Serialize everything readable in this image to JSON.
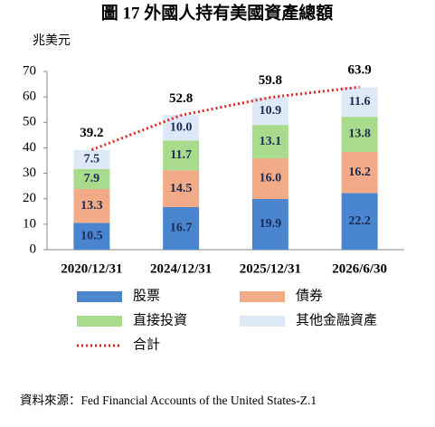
{
  "chart_data": {
    "type": "bar",
    "stacked": true,
    "title": "圖 17  外國人持有美國資產總額",
    "y_label": "兆美元",
    "source": "資料來源：Fed Financial Accounts of the United States-Z.1",
    "categories": [
      "2020/12/31",
      "2024/12/31",
      "2025/12/31",
      "2026/6/30"
    ],
    "series": [
      {
        "name": "股票",
        "color": "#4a86d0",
        "values": [
          10.5,
          16.7,
          19.9,
          22.2
        ]
      },
      {
        "name": "債券",
        "color": "#f2ab86",
        "values": [
          13.3,
          14.5,
          16.0,
          16.2
        ],
        "value_labels": [
          "13.3",
          "14.5",
          "16.0",
          "16.2"
        ]
      },
      {
        "name": "直接投資",
        "color": "#a8dc8c",
        "values": [
          7.9,
          11.7,
          13.1,
          13.8
        ]
      },
      {
        "name": "其他金融資產",
        "color": "#dde9f6",
        "values": [
          7.5,
          10.0,
          10.9,
          11.6
        ],
        "value_labels": [
          "7.5",
          "10.0",
          "10.9",
          "11.6"
        ]
      },
      {
        "name": "合計",
        "type": "line",
        "color": "#e02525",
        "values": [
          39.2,
          52.8,
          59.8,
          63.9
        ]
      }
    ],
    "ylim": [
      0,
      70
    ],
    "yticks": [
      0,
      10,
      20,
      30,
      40,
      50,
      60,
      70
    ],
    "grid": false
  }
}
